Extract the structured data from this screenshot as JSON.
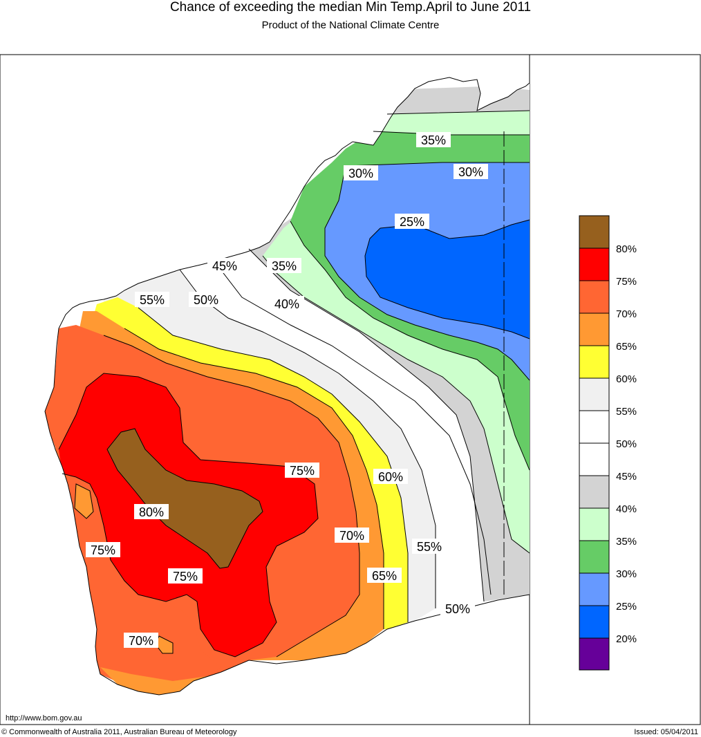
{
  "title": "Chance of exceeding the median Min Temp.April to June 2011",
  "subtitle": "Product of the National Climate Centre",
  "url": "http://www.bom.gov.au",
  "copyright": "© Commonwealth of Australia 2011, Australian Bureau of Meteorology",
  "issued": "Issued: 05/04/2011",
  "colors": {
    "c80": "#96601e",
    "c75": "#ff0000",
    "c70": "#ff6633",
    "c65": "#ff9933",
    "c60": "#ffff33",
    "c55": "#f0f0f0",
    "c50": "#ffffff",
    "c45": "#ffffff",
    "c40": "#d3d3d3",
    "c35": "#ccffcc",
    "c30": "#66cc66",
    "c25": "#6699ff",
    "c20": "#0066ff",
    "c15": "#660099"
  },
  "legend": {
    "labels": [
      "80%",
      "75%",
      "70%",
      "65%",
      "60%",
      "55%",
      "50%",
      "45%",
      "40%",
      "35%",
      "30%",
      "25%",
      "20%"
    ]
  },
  "contour_labels": [
    "35%",
    "30%",
    "30%",
    "25%",
    "45%",
    "35%",
    "55%",
    "50%",
    "40%",
    "75%",
    "60%",
    "80%",
    "70%",
    "75%",
    "55%",
    "75%",
    "65%",
    "50%",
    "70%"
  ]
}
